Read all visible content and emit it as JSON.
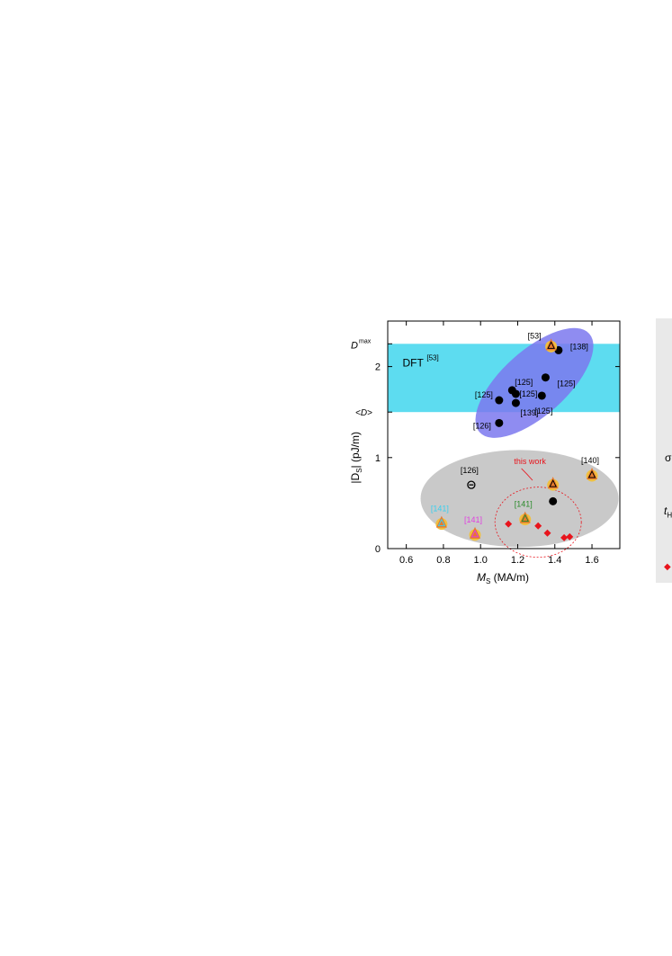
{
  "chart_data": {
    "type": "scatter",
    "xlabel": {
      "main": "M",
      "sub": "S",
      "unit": " (MA/m)"
    },
    "ylabel": {
      "pre": "|D",
      "sub": "S",
      "post": "| (pJ/m)"
    },
    "xlim": [
      0.5,
      1.75
    ],
    "ylim": [
      0,
      2.5
    ],
    "xticks": [
      "0.6",
      "0.8",
      "1.0",
      "1.2",
      "1.4",
      "1.6"
    ],
    "yticks": [
      "0",
      "1",
      "2"
    ],
    "ytick_labels_extra": [
      {
        "label_main": "D",
        "label_sup": "max",
        "y": 2.25
      },
      {
        "label_main": "<D>",
        "y": 1.5
      }
    ],
    "bands": [
      {
        "name": "DFT",
        "ref": "[53]",
        "y_from": 1.5,
        "y_to": 2.25,
        "color": "#5ddcf0"
      }
    ],
    "regions": [
      {
        "name": "blue-ellipse",
        "color": "#7b78ef"
      },
      {
        "name": "gray-ellipse",
        "color": "#c9c9c9"
      },
      {
        "name": "this-work-circle",
        "label": "this work",
        "color": "#e8141c"
      }
    ],
    "series": [
      {
        "marker": "filled-circle",
        "color": "#000000",
        "points": [
          {
            "x": 1.1,
            "y": 1.63,
            "err": 0.1,
            "label": "[125]"
          },
          {
            "x": 1.1,
            "y": 1.38,
            "label": "[126]"
          },
          {
            "x": 1.17,
            "y": 1.74,
            "err": 0.2,
            "label": "[125]"
          },
          {
            "x": 1.19,
            "y": 1.7,
            "err": 0.1,
            "label": "[125]"
          },
          {
            "x": 1.19,
            "y": 1.6,
            "err": 0.18,
            "label": "[139]"
          },
          {
            "x": 1.33,
            "y": 1.68,
            "err": 0.2,
            "label": "[125]"
          },
          {
            "x": 1.35,
            "y": 1.88,
            "err": 0.2,
            "label": "[125]"
          },
          {
            "x": 1.42,
            "y": 2.18,
            "label": "[138]"
          },
          {
            "x": 1.39,
            "y": 0.7,
            "err": 0.2
          },
          {
            "x": 1.39,
            "y": 0.52,
            "err": 0.3
          }
        ]
      },
      {
        "marker": "open-circle-minus",
        "color": "#000000",
        "points": [
          {
            "x": 0.95,
            "y": 0.7,
            "label": "[126]"
          }
        ]
      },
      {
        "marker": "triangle-ring",
        "color": "#e87a2c",
        "points": [
          {
            "x": 1.38,
            "y": 2.22,
            "err": 0.1,
            "label": "[53]"
          },
          {
            "x": 1.39,
            "y": 0.7,
            "label": ""
          },
          {
            "x": 1.6,
            "y": 0.8,
            "err": 0.05,
            "label": "[140]"
          },
          {
            "x": 0.79,
            "y": 0.27,
            "label": "[141]",
            "label_color": "#38d0f0"
          },
          {
            "x": 0.97,
            "y": 0.15,
            "label": "[141]",
            "label_color": "#e040e0"
          },
          {
            "x": 1.24,
            "y": 0.32,
            "label": "[141]",
            "label_color": "#2a8a2a"
          }
        ]
      },
      {
        "marker": "diamond",
        "color": "#e8141c",
        "points": [
          {
            "x": 1.15,
            "y": 0.27,
            "err": 0.07
          },
          {
            "x": 1.31,
            "y": 0.25,
            "err": 0.07
          },
          {
            "x": 1.36,
            "y": 0.17,
            "err": 0.04
          },
          {
            "x": 1.45,
            "y": 0.12,
            "err": 0.03
          },
          {
            "x": 1.48,
            "y": 0.13,
            "err": 0.03
          }
        ]
      }
    ],
    "legend_fragments": [
      {
        "text": "σ"
      },
      {
        "text": "t",
        "sub": "H"
      },
      {
        "symbol": "◆"
      }
    ]
  }
}
